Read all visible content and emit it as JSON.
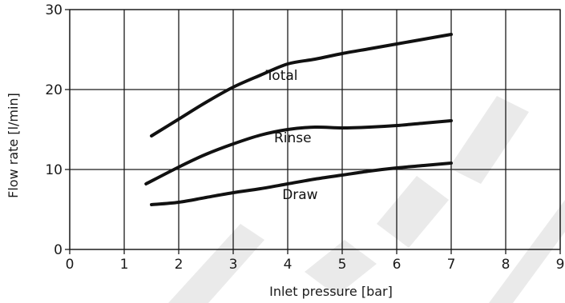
{
  "chart_data": {
    "type": "line",
    "xlabel": "Inlet pressure [bar]",
    "ylabel": "Flow rate [l/min]",
    "xlim": [
      0,
      9
    ],
    "ylim": [
      0,
      30
    ],
    "xticks": [
      "0",
      "1",
      "2",
      "3",
      "4",
      "5",
      "6",
      "7",
      "8",
      "9"
    ],
    "yticks": [
      "0",
      "10",
      "20",
      "30"
    ],
    "grid": true,
    "series": [
      {
        "name": "Total",
        "x": [
          1.5,
          2,
          2.5,
          3,
          3.5,
          4,
          4.5,
          5,
          5.5,
          6,
          6.5,
          7
        ],
        "y": [
          14.2,
          16.3,
          18.4,
          20.3,
          21.8,
          23.2,
          23.8,
          24.5,
          25.1,
          25.7,
          26.3,
          26.9
        ]
      },
      {
        "name": "Rinse",
        "x": [
          1.4,
          2,
          2.5,
          3,
          3.5,
          4,
          4.5,
          5,
          5.5,
          6,
          6.5,
          7
        ],
        "y": [
          8.2,
          10.3,
          11.9,
          13.2,
          14.3,
          15.0,
          15.3,
          15.2,
          15.3,
          15.5,
          15.8,
          16.1
        ]
      },
      {
        "name": "Draw",
        "x": [
          1.5,
          2,
          2.5,
          3,
          3.5,
          4,
          4.5,
          5,
          5.5,
          6,
          6.5,
          7
        ],
        "y": [
          5.6,
          5.9,
          6.5,
          7.1,
          7.6,
          8.2,
          8.8,
          9.3,
          9.8,
          10.2,
          10.5,
          10.8
        ]
      }
    ]
  }
}
